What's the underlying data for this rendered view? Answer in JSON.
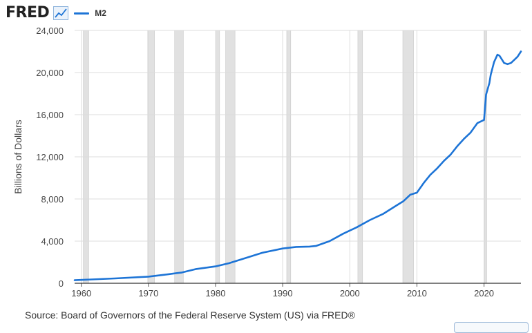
{
  "header": {
    "logo_text": "FRED",
    "spark_icon": "trend-line-icon",
    "legend_label": "M2"
  },
  "source_text": "Source: Board of Governors of the Federal Reserve System (US) via FRED®",
  "colors": {
    "series": "#1d74d6",
    "recession": "#e1e1e1",
    "grid": "#dcdcdc",
    "axis_text": "#444444"
  },
  "chart_data": {
    "type": "line",
    "title": "",
    "xlabel": "",
    "ylabel": "Billions of Dollars",
    "xlim": [
      1959.0,
      2025.5
    ],
    "ylim": [
      0,
      24000
    ],
    "xticks": [
      1960,
      1970,
      1980,
      1990,
      2000,
      2010,
      2020
    ],
    "yticks": [
      0,
      4000,
      8000,
      12000,
      16000,
      20000,
      24000
    ],
    "ytick_labels": [
      "0",
      "4,000",
      "8,000",
      "12,000",
      "16,000",
      "20,000",
      "24,000"
    ],
    "grid": true,
    "legend": "top-left",
    "recessions": [
      [
        1960.3,
        1961.1
      ],
      [
        1969.9,
        1970.9
      ],
      [
        1973.9,
        1975.2
      ],
      [
        1980.0,
        1980.6
      ],
      [
        1981.5,
        1982.9
      ],
      [
        1990.6,
        1991.2
      ],
      [
        2001.2,
        2001.9
      ],
      [
        2007.9,
        2009.5
      ],
      [
        2020.1,
        2020.4
      ]
    ],
    "series": [
      {
        "name": "M2",
        "x": [
          1959.0,
          1965,
          1970,
          1973,
          1975,
          1977,
          1980,
          1982,
          1985,
          1987,
          1990,
          1992,
          1994,
          1995,
          1997,
          1999,
          2001,
          2003,
          2005,
          2007,
          2008,
          2009,
          2010,
          2011,
          2012,
          2013,
          2014,
          2015,
          2016,
          2017,
          2018,
          2019,
          2020.0,
          2020.3,
          2020.8,
          2021.0,
          2021.5,
          2022.0,
          2022.3,
          2022.7,
          2023.0,
          2023.5,
          2024.0,
          2024.5,
          2025.0,
          2025.5
        ],
        "y": [
          290,
          460,
          630,
          860,
          1020,
          1340,
          1600,
          1900,
          2500,
          2900,
          3300,
          3450,
          3480,
          3550,
          4000,
          4700,
          5300,
          6000,
          6600,
          7400,
          7800,
          8400,
          8600,
          9500,
          10300,
          10900,
          11600,
          12200,
          13000,
          13700,
          14300,
          15200,
          15500,
          17900,
          19000,
          19800,
          21000,
          21700,
          21600,
          21200,
          20900,
          20800,
          20900,
          21200,
          21500,
          22000
        ]
      }
    ]
  }
}
